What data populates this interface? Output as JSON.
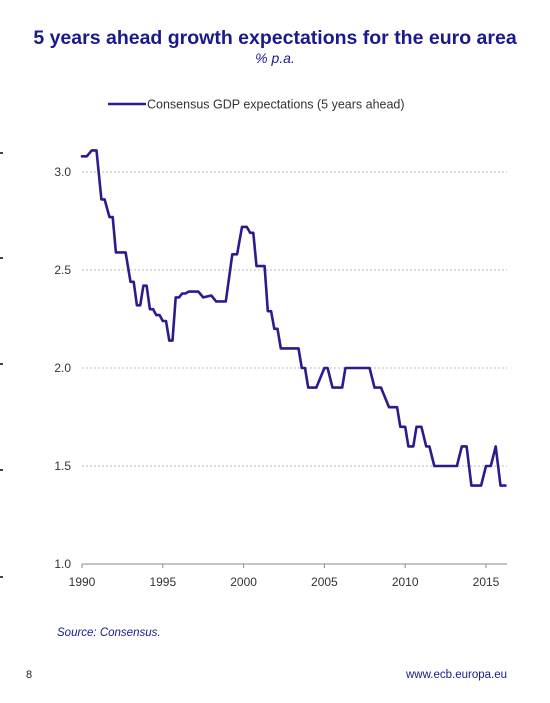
{
  "header": {
    "title": "5 years ahead growth expectations for the euro area",
    "subtitle": "% p.a."
  },
  "chart_data": {
    "type": "line",
    "legend": {
      "position": "top-center"
    },
    "grid": {
      "horizontal": true,
      "style": "dashed"
    },
    "xlim": [
      1990,
      2016.3
    ],
    "ylim": [
      1.0,
      3.0
    ],
    "x_ticks": [
      1990,
      1995,
      2000,
      2005,
      2010,
      2015
    ],
    "y_ticks": [
      1.0,
      1.5,
      2.0,
      2.5,
      3.0
    ],
    "x_tick_labels": [
      "1990",
      "1995",
      "2000",
      "2005",
      "2010",
      "2015"
    ],
    "y_tick_labels": [
      "1.0",
      "1.5",
      "2.0",
      "2.5",
      "3.0"
    ],
    "colors": {
      "line": "#2a1c8c",
      "text": "#1a1a8c",
      "grid": "#bbbbbb",
      "axis": "#888888"
    },
    "series": [
      {
        "name": "Consensus GDP expectations (5 years ahead)",
        "x": [
          1990.0,
          1990.3,
          1990.6,
          1990.9,
          1991.2,
          1991.4,
          1991.7,
          1991.9,
          1992.1,
          1992.2,
          1992.4,
          1992.7,
          1993.0,
          1993.2,
          1993.4,
          1993.6,
          1993.8,
          1994.0,
          1994.2,
          1994.4,
          1994.6,
          1994.8,
          1995.0,
          1995.2,
          1995.4,
          1995.6,
          1995.8,
          1996.0,
          1996.2,
          1996.4,
          1996.6,
          1996.8,
          1997.0,
          1997.2,
          1997.5,
          1998.0,
          1998.3,
          1998.6,
          1998.9,
          1999.3,
          1999.6,
          1999.9,
          2000.2,
          2000.4,
          2000.6,
          2000.8,
          2001.0,
          2001.3,
          2001.5,
          2001.7,
          2001.9,
          2002.1,
          2002.3,
          2002.6,
          2002.8,
          2003.0,
          2003.2,
          2003.4,
          2003.6,
          2003.8,
          2004.0,
          2004.5,
          2005.0,
          2005.2,
          2005.5,
          2005.8,
          2006.1,
          2006.3,
          2006.6,
          2006.9,
          2007.2,
          2007.5,
          2007.8,
          2008.1,
          2008.5,
          2009.0,
          2009.5,
          2009.7,
          2010.0,
          2010.2,
          2010.5,
          2010.7,
          2011.0,
          2011.3,
          2011.5,
          2011.8,
          2012.1,
          2012.3,
          2012.6,
          2012.9,
          2013.2,
          2013.5,
          2013.8,
          2014.1,
          2014.4,
          2014.7,
          2015.0,
          2015.3,
          2015.6,
          2015.9,
          2016.2
        ],
        "values": [
          3.08,
          3.08,
          3.11,
          3.11,
          2.86,
          2.86,
          2.77,
          2.77,
          2.59,
          2.59,
          2.59,
          2.59,
          2.44,
          2.44,
          2.32,
          2.32,
          2.42,
          2.42,
          2.3,
          2.3,
          2.27,
          2.27,
          2.24,
          2.24,
          2.14,
          2.14,
          2.36,
          2.36,
          2.38,
          2.38,
          2.39,
          2.39,
          2.39,
          2.39,
          2.36,
          2.37,
          2.34,
          2.34,
          2.34,
          2.58,
          2.58,
          2.72,
          2.72,
          2.69,
          2.69,
          2.52,
          2.52,
          2.52,
          2.29,
          2.29,
          2.2,
          2.2,
          2.1,
          2.1,
          2.1,
          2.1,
          2.1,
          2.1,
          2.0,
          2.0,
          1.9,
          1.9,
          2.0,
          2.0,
          1.9,
          1.9,
          1.9,
          2.0,
          2.0,
          2.0,
          2.0,
          2.0,
          2.0,
          1.9,
          1.9,
          1.8,
          1.8,
          1.7,
          1.7,
          1.6,
          1.6,
          1.7,
          1.7,
          1.6,
          1.6,
          1.5,
          1.5,
          1.5,
          1.5,
          1.5,
          1.5,
          1.6,
          1.6,
          1.4,
          1.4,
          1.4,
          1.5,
          1.5,
          1.6,
          1.4,
          1.4
        ]
      }
    ]
  },
  "footer": {
    "source": "Source: Consensus.",
    "page_number": "8",
    "website": "www.ecb.europa.eu"
  }
}
